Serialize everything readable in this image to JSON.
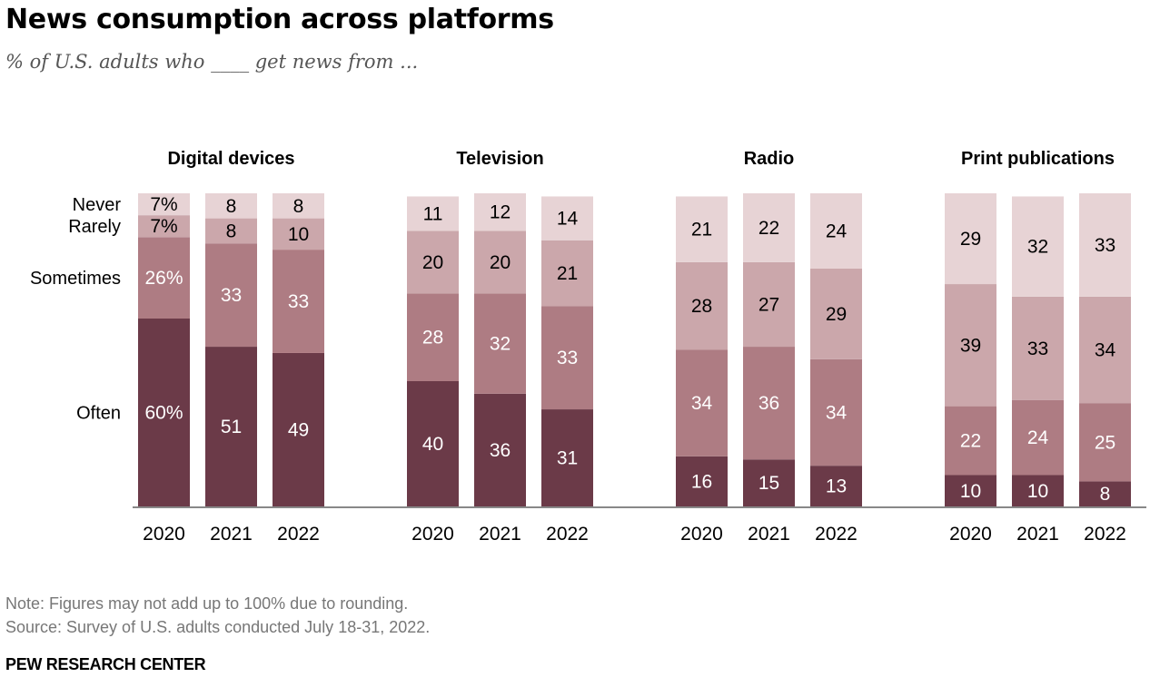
{
  "title": "News consumption across platforms",
  "subtitle": "% of U.S. adults who ____ get news from ...",
  "note": "Note: Figures may not add up to 100% due to rounding.",
  "source": "Source: Survey of U.S. adults conducted July 18-31, 2022.",
  "brand": "PEW RESEARCH CENTER",
  "colors": {
    "Often": "#6b3a48",
    "Sometimes": "#ae7c83",
    "Rarely": "#cba7ab",
    "Never": "#e7d3d5"
  },
  "chart_data": {
    "type": "bar",
    "stacked": true,
    "title": "News consumption across platforms",
    "subtitle": "% of U.S. adults who ____ get news from ...",
    "ylim": [
      0,
      100
    ],
    "categories": [
      "Often",
      "Sometimes",
      "Rarely",
      "Never"
    ],
    "legend_labels": [
      "Never",
      "Rarely",
      "Sometimes",
      "Often"
    ],
    "panels": [
      {
        "name": "Digital devices",
        "bars": [
          {
            "year": "2020",
            "values": {
              "Often": 60,
              "Sometimes": 26,
              "Rarely": 7,
              "Never": 7
            },
            "labels": {
              "Often": "60%",
              "Sometimes": "26%",
              "Rarely": "7%",
              "Never": "7%"
            }
          },
          {
            "year": "2021",
            "values": {
              "Often": 51,
              "Sometimes": 33,
              "Rarely": 8,
              "Never": 8
            },
            "labels": {
              "Often": "51",
              "Sometimes": "33",
              "Rarely": "8",
              "Never": "8"
            }
          },
          {
            "year": "2022",
            "values": {
              "Often": 49,
              "Sometimes": 33,
              "Rarely": 10,
              "Never": 8
            },
            "labels": {
              "Often": "49",
              "Sometimes": "33",
              "Rarely": "10",
              "Never": "8"
            }
          }
        ]
      },
      {
        "name": "Television",
        "bars": [
          {
            "year": "2020",
            "values": {
              "Often": 40,
              "Sometimes": 28,
              "Rarely": 20,
              "Never": 11
            },
            "labels": {
              "Often": "40",
              "Sometimes": "28",
              "Rarely": "20",
              "Never": "11"
            }
          },
          {
            "year": "2021",
            "values": {
              "Often": 36,
              "Sometimes": 32,
              "Rarely": 20,
              "Never": 12
            },
            "labels": {
              "Often": "36",
              "Sometimes": "32",
              "Rarely": "20",
              "Never": "12"
            }
          },
          {
            "year": "2022",
            "values": {
              "Often": 31,
              "Sometimes": 33,
              "Rarely": 21,
              "Never": 14
            },
            "labels": {
              "Often": "31",
              "Sometimes": "33",
              "Rarely": "21",
              "Never": "14"
            }
          }
        ]
      },
      {
        "name": "Radio",
        "bars": [
          {
            "year": "2020",
            "values": {
              "Often": 16,
              "Sometimes": 34,
              "Rarely": 28,
              "Never": 21
            },
            "labels": {
              "Often": "16",
              "Sometimes": "34",
              "Rarely": "28",
              "Never": "21"
            }
          },
          {
            "year": "2021",
            "values": {
              "Often": 15,
              "Sometimes": 36,
              "Rarely": 27,
              "Never": 22
            },
            "labels": {
              "Often": "15",
              "Sometimes": "36",
              "Rarely": "27",
              "Never": "22"
            }
          },
          {
            "year": "2022",
            "values": {
              "Often": 13,
              "Sometimes": 34,
              "Rarely": 29,
              "Never": 24
            },
            "labels": {
              "Often": "13",
              "Sometimes": "34",
              "Rarely": "29",
              "Never": "24"
            }
          }
        ]
      },
      {
        "name": "Print publications",
        "bars": [
          {
            "year": "2020",
            "values": {
              "Often": 10,
              "Sometimes": 22,
              "Rarely": 39,
              "Never": 29
            },
            "labels": {
              "Often": "10",
              "Sometimes": "22",
              "Rarely": "39",
              "Never": "29"
            }
          },
          {
            "year": "2021",
            "values": {
              "Often": 10,
              "Sometimes": 24,
              "Rarely": 33,
              "Never": 32
            },
            "labels": {
              "Often": "10",
              "Sometimes": "24",
              "Rarely": "33",
              "Never": "32"
            }
          },
          {
            "year": "2022",
            "values": {
              "Often": 8,
              "Sometimes": 25,
              "Rarely": 34,
              "Never": 33
            },
            "labels": {
              "Often": "8",
              "Sometimes": "25",
              "Rarely": "34",
              "Never": "33"
            }
          }
        ]
      }
    ]
  }
}
